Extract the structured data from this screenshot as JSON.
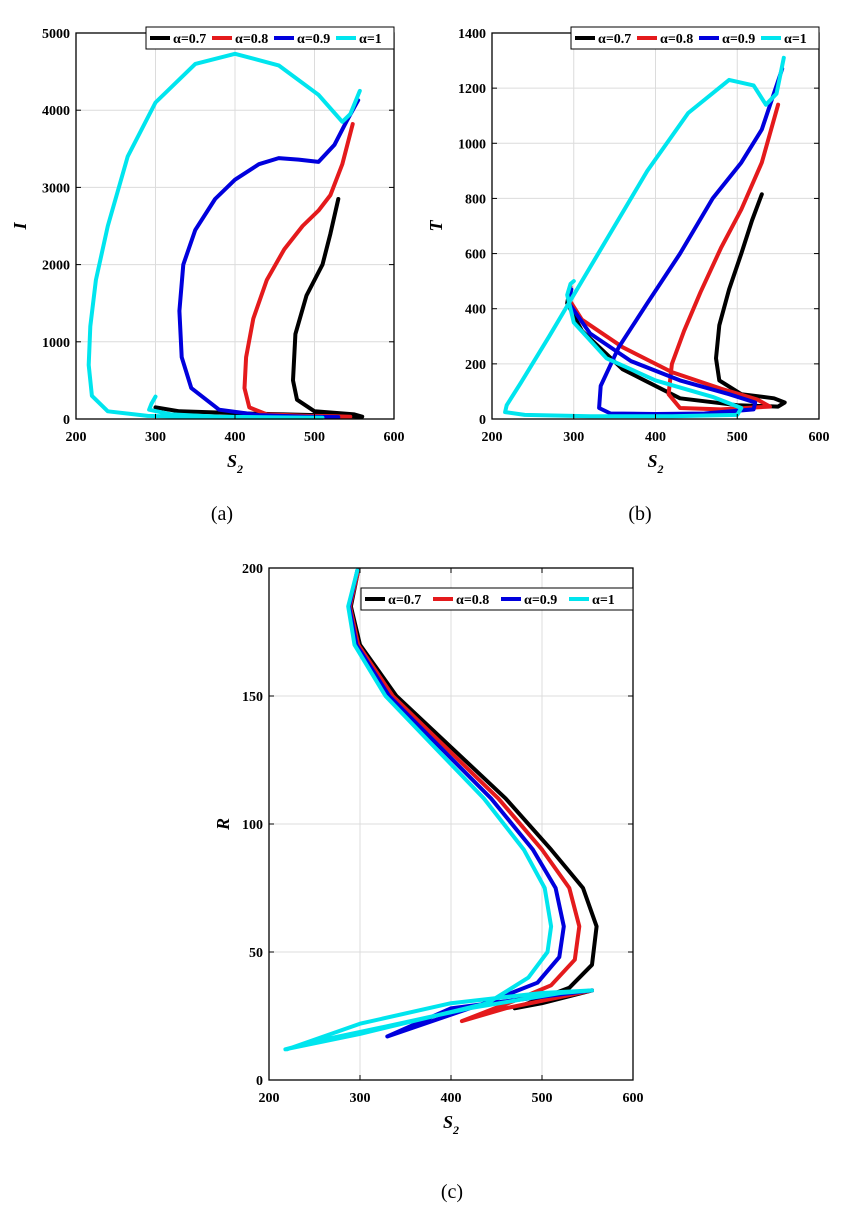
{
  "chart_data": [
    {
      "id": "a",
      "type": "line",
      "caption": "(a)",
      "xlabel": "S",
      "xlabel_sub": "2",
      "ylabel": "I",
      "xlim": [
        200,
        600
      ],
      "ylim": [
        0,
        5000
      ],
      "xticks": [
        "200",
        "300",
        "400",
        "500",
        "600"
      ],
      "yticks": [
        "0",
        "1000",
        "2000",
        "3000",
        "4000",
        "5000"
      ],
      "grid": true,
      "legend_position": "top-right",
      "legend": [
        "α=0.7",
        "α=0.8",
        "α=0.9",
        "α=1"
      ],
      "series": [
        {
          "name": "α=0.7",
          "color": "#000000",
          "x": [
            530,
            520,
            510,
            490,
            476,
            473,
            478,
            500,
            550,
            560,
            520,
            420,
            330,
            300
          ],
          "y": [
            2850,
            2400,
            2000,
            1600,
            1100,
            500,
            250,
            100,
            60,
            30,
            45,
            70,
            100,
            150
          ]
        },
        {
          "name": "α=0.8",
          "color": "#e41a1c",
          "x": [
            548,
            535,
            520,
            505,
            485,
            462,
            440,
            423,
            414,
            412,
            418,
            440,
            490,
            545,
            525,
            500
          ],
          "y": [
            3820,
            3300,
            2900,
            2700,
            2500,
            2200,
            1800,
            1300,
            800,
            400,
            150,
            60,
            40,
            30,
            35,
            40
          ]
        },
        {
          "name": "α=0.9",
          "color": "#0000dd",
          "x": [
            555,
            540,
            525,
            505,
            480,
            455,
            430,
            400,
            375,
            350,
            335,
            330,
            333,
            345,
            380,
            430,
            490,
            530,
            500
          ],
          "y": [
            4130,
            3850,
            3550,
            3330,
            3360,
            3380,
            3300,
            3100,
            2850,
            2450,
            2000,
            1400,
            800,
            400,
            120,
            50,
            30,
            25,
            20
          ]
        },
        {
          "name": "α=1",
          "color": "#00e5ee",
          "x": [
            557,
            545,
            535,
            505,
            455,
            400,
            350,
            300,
            265,
            240,
            225,
            218,
            216,
            220,
            240,
            290,
            370,
            450,
            510,
            470,
            380,
            320,
            292,
            295,
            300
          ],
          "y": [
            4250,
            3950,
            3850,
            4200,
            4580,
            4730,
            4600,
            4100,
            3400,
            2500,
            1800,
            1200,
            700,
            300,
            100,
            40,
            20,
            15,
            15,
            20,
            30,
            60,
            120,
            200,
            290
          ]
        }
      ]
    },
    {
      "id": "b",
      "type": "line",
      "caption": "(b)",
      "xlabel": "S",
      "xlabel_sub": "2",
      "ylabel": "T",
      "xlim": [
        200,
        600
      ],
      "ylim": [
        0,
        1400
      ],
      "xticks": [
        "200",
        "300",
        "400",
        "500",
        "600"
      ],
      "yticks": [
        "0",
        "200",
        "400",
        "600",
        "800",
        "1000",
        "1200",
        "1400"
      ],
      "grid": true,
      "legend_position": "top-right",
      "legend": [
        "α=0.7",
        "α=0.8",
        "α=0.9",
        "α=1"
      ],
      "series": [
        {
          "name": "α=0.7",
          "color": "#000000",
          "x": [
            530,
            518,
            505,
            490,
            478,
            474,
            478,
            505,
            545,
            558,
            550,
            500,
            430,
            360,
            310,
            292,
            295
          ],
          "y": [
            815,
            720,
            600,
            470,
            340,
            220,
            140,
            90,
            75,
            60,
            45,
            50,
            75,
            180,
            320,
            420,
            470
          ]
        },
        {
          "name": "α=0.8",
          "color": "#e41a1c",
          "x": [
            550,
            530,
            505,
            480,
            455,
            435,
            420,
            416,
            430,
            480,
            540,
            525,
            480,
            420,
            360,
            310,
            293,
            296
          ],
          "y": [
            1140,
            930,
            760,
            620,
            460,
            320,
            200,
            90,
            40,
            35,
            45,
            70,
            110,
            170,
            260,
            360,
            440,
            480
          ]
        },
        {
          "name": "α=0.9",
          "color": "#0000dd",
          "x": [
            555,
            530,
            505,
            470,
            430,
            390,
            355,
            333,
            331,
            345,
            400,
            460,
            520,
            522,
            490,
            430,
            370,
            320,
            294,
            297
          ],
          "y": [
            1270,
            1050,
            930,
            800,
            600,
            420,
            260,
            120,
            40,
            20,
            18,
            20,
            35,
            60,
            90,
            140,
            210,
            310,
            420,
            470
          ]
        },
        {
          "name": "α=1",
          "color": "#00e5ee",
          "x": [
            557,
            548,
            535,
            520,
            490,
            440,
            390,
            350,
            310,
            270,
            235,
            218,
            216,
            240,
            320,
            420,
            500,
            505,
            470,
            400,
            340,
            300,
            292,
            296,
            300
          ],
          "y": [
            1310,
            1180,
            1140,
            1210,
            1230,
            1110,
            900,
            700,
            500,
            300,
            130,
            50,
            25,
            15,
            10,
            10,
            15,
            40,
            80,
            140,
            220,
            350,
            450,
            490,
            500
          ]
        }
      ]
    },
    {
      "id": "c",
      "type": "line",
      "caption": "(c)",
      "xlabel": "S",
      "xlabel_sub": "2",
      "ylabel": "R",
      "xlim": [
        200,
        600
      ],
      "ylim": [
        0,
        200
      ],
      "xticks": [
        "200",
        "300",
        "400",
        "500",
        "600"
      ],
      "yticks": [
        "0",
        "50",
        "100",
        "150",
        "200"
      ],
      "grid": true,
      "legend_position": "top-right",
      "legend": [
        "α=0.7",
        "α=0.8",
        "α=0.9",
        "α=1"
      ],
      "series": [
        {
          "name": "α=0.7",
          "color": "#000000",
          "x": [
            298,
            290,
            300,
            340,
            400,
            460,
            510,
            545,
            560,
            555,
            530,
            500,
            470,
            500,
            555
          ],
          "y": [
            199,
            185,
            170,
            150,
            130,
            110,
            90,
            75,
            60,
            45,
            36,
            32,
            28,
            30,
            35
          ]
        },
        {
          "name": "α=0.8",
          "color": "#e41a1c",
          "x": [
            298,
            289,
            298,
            336,
            394,
            452,
            500,
            530,
            541,
            536,
            510,
            470,
            412,
            460,
            555
          ],
          "y": [
            199,
            185,
            170,
            150,
            130,
            110,
            90,
            75,
            60,
            47,
            37,
            31,
            23,
            28,
            35
          ]
        },
        {
          "name": "α=0.9",
          "color": "#0000dd",
          "x": [
            297,
            288,
            296,
            332,
            388,
            444,
            490,
            515,
            524,
            519,
            495,
            445,
            330,
            400,
            555
          ],
          "y": [
            199,
            185,
            170,
            150,
            130,
            110,
            90,
            75,
            60,
            48,
            38,
            31,
            17,
            28,
            35
          ]
        },
        {
          "name": "α=1",
          "color": "#00e5ee",
          "x": [
            297,
            287,
            294,
            328,
            382,
            436,
            480,
            503,
            510,
            506,
            485,
            440,
            370,
            300,
            218,
            250,
            330,
            420,
            520,
            555,
            500,
            400,
            300,
            220
          ],
          "y": [
            199,
            185,
            170,
            150,
            130,
            110,
            90,
            75,
            60,
            50,
            40,
            30,
            24,
            18,
            12,
            15,
            21,
            28,
            34,
            35,
            34,
            30,
            22,
            12
          ]
        }
      ]
    }
  ]
}
